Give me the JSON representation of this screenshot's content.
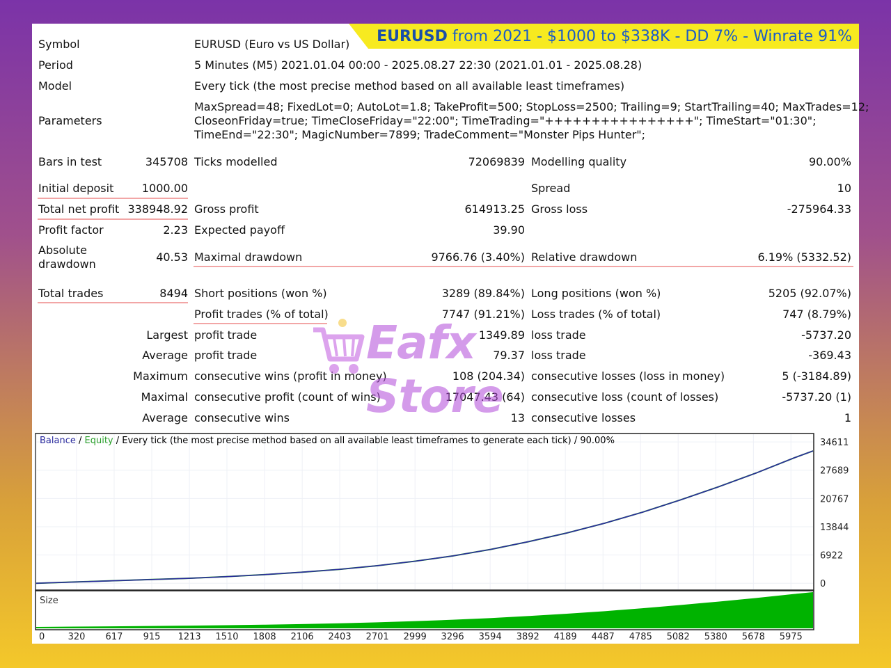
{
  "banner": {
    "ticker": "EURUSD",
    "rest": "from 2021 - $1000 to $338K - DD 7% - Winrate 91%"
  },
  "symbol": {
    "label": "Symbol",
    "value": "EURUSD (Euro vs US Dollar)"
  },
  "period": {
    "label": "Period",
    "value": "5 Minutes (M5) 2021.01.04 00:00 - 2025.08.27 22:30 (2021.01.01 - 2025.08.28)"
  },
  "model": {
    "label": "Model",
    "value": "Every tick (the most precise method based on all available least timeframes)"
  },
  "parameters": {
    "label": "Parameters",
    "line1": "MaxSpread=48; FixedLot=0; AutoLot=1.8; TakeProfit=500; StopLoss=2500; Trailing=9; StartTrailing=40; MaxTrades=12;",
    "line2": "CloseonFriday=true; TimeCloseFriday=\"22:00\"; TimeTrading=\"++++++++++++++++\"; TimeStart=\"01:30\";",
    "line3": "TimeEnd=\"22:30\"; MagicNumber=7899; TradeComment=\"Monster Pips Hunter\";"
  },
  "stats": {
    "bars_label": "Bars in test",
    "bars_value": "345708",
    "ticks_label": "Ticks modelled",
    "ticks_value": "72069839",
    "quality_label": "Modelling quality",
    "quality_value": "90.00%",
    "deposit_label": "Initial deposit",
    "deposit_value": "1000.00",
    "spread_label": "Spread",
    "spread_value": "10",
    "netprofit_label": "Total net profit",
    "netprofit_value": "338948.92",
    "grossprofit_label": "Gross profit",
    "grossprofit_value": "614913.25",
    "grossloss_label": "Gross loss",
    "grossloss_value": "-275964.33",
    "pf_label": "Profit factor",
    "pf_value": "2.23",
    "payoff_label": "Expected payoff",
    "payoff_value": "39.90",
    "absdd_label1": "Absolute",
    "absdd_label2": "drawdown",
    "absdd_value": "40.53",
    "maxdd_label": "Maximal drawdown",
    "maxdd_value": "9766.76 (3.40%)",
    "reldd_label": "Relative drawdown",
    "reldd_value": "6.19% (5332.52)",
    "trades_label": "Total trades",
    "trades_value": "8494",
    "short_label": "Short positions (won %)",
    "short_value": "3289 (89.84%)",
    "long_label": "Long positions (won %)",
    "long_value": "5205 (92.07%)",
    "profittrades_label": "Profit trades (% of total)",
    "profittrades_value": "7747 (91.21%)",
    "losstrades_label": "Loss trades (% of total)",
    "losstrades_value": "747 (8.79%)",
    "largest_label": "Largest",
    "largest_profit_label": "profit trade",
    "largest_profit_value": "1349.89",
    "largest_loss_label": "loss trade",
    "largest_loss_value": "-5737.20",
    "average_label": "Average",
    "average_profit_label": "profit trade",
    "average_profit_value": "79.37",
    "average_loss_label": "loss trade",
    "average_loss_value": "-369.43",
    "maximum_label": "Maximum",
    "maxwins_label": "consecutive wins (profit in money)",
    "maxwins_value": "108 (204.34)",
    "maxlosses_label": "consecutive losses (loss in money)",
    "maxlosses_value": "5 (-3184.89)",
    "maximal_label": "Maximal",
    "maxprofit_label": "consecutive profit (count of wins)",
    "maxprofit_value": "17047.43 (64)",
    "maxloss_label": "consecutive loss (count of losses)",
    "maxloss_value": "-5737.20 (1)",
    "avg2_label": "Average",
    "avgwins_label": "consecutive wins",
    "avgwins_value": "13",
    "avglosses_label": "consecutive losses",
    "avglosses_value": "1"
  },
  "watermark": "Eafx Store",
  "chart_data": {
    "type": "line",
    "legend_balance": "Balance",
    "legend_sep": " / ",
    "legend_equity": "Equity",
    "legend_rest": " / Every tick (the most precise method based on all available least timeframes to generate each tick) / 90.00%",
    "size_label": "Size",
    "y_ticks": [
      34611,
      27689,
      20767,
      13844,
      6922,
      0
    ],
    "x_ticks": [
      0,
      320,
      617,
      915,
      1213,
      1510,
      1808,
      2106,
      2403,
      2701,
      2999,
      3296,
      3594,
      3892,
      4189,
      4487,
      4785,
      5082,
      5380,
      5678,
      5975
    ],
    "x_max": 6150,
    "y_min": -1500,
    "y_max": 36500,
    "series": [
      {
        "name": "Balance",
        "color": "#2b2b9e",
        "x": [
          0,
          300,
          600,
          900,
          1200,
          1500,
          1800,
          2100,
          2400,
          2700,
          3000,
          3300,
          3600,
          3900,
          4200,
          4500,
          4800,
          5100,
          5400,
          5700,
          6000,
          6150
        ],
        "y": [
          0,
          300,
          600,
          900,
          1200,
          1600,
          2100,
          2700,
          3400,
          4300,
          5400,
          6700,
          8300,
          10200,
          12300,
          14700,
          17400,
          20400,
          23600,
          27000,
          30700,
          32400
        ]
      },
      {
        "name": "Equity",
        "color": "#2aa02a"
      }
    ],
    "colors": {
      "balance": "#2b2b9e",
      "equity": "#2aa02a",
      "size": "#00b300"
    }
  }
}
